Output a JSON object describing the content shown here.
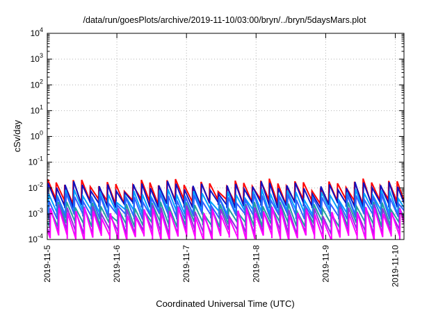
{
  "chart_data": {
    "type": "line",
    "title": "/data/run/goesPlots/archive/2019-11-10/03:00/bryn/../bryn/5daysMars.plot",
    "xlabel": "Coordinated Universal Time (UTC)",
    "ylabel": "cSv/day",
    "x_scale": "time",
    "xlim": [
      "2019-11-05T00:00",
      "2019-11-10T03:00"
    ],
    "x_ticks": [
      "2019-11-5",
      "2019-11-6",
      "2019-11-7",
      "2019-11-8",
      "2019-11-9",
      "2019-11-10"
    ],
    "y_scale": "log",
    "ylim": [
      0.0001,
      10000
    ],
    "y_ticks": [
      {
        "base": "10",
        "exp": "-4"
      },
      {
        "base": "10",
        "exp": "-3"
      },
      {
        "base": "10",
        "exp": "-2"
      },
      {
        "base": "10",
        "exp": "-1"
      },
      {
        "base": "10",
        "exp": "0"
      },
      {
        "base": "10",
        "exp": "1"
      },
      {
        "base": "10",
        "exp": "2"
      },
      {
        "base": "10",
        "exp": "3"
      },
      {
        "base": "10",
        "exp": "4"
      }
    ],
    "grid": true,
    "legend": "none",
    "cycle_period_hours": 2.94,
    "series": [
      {
        "color": "#ff0000",
        "peak": 0.015,
        "trough": 0.003,
        "phase_hours": 0.0
      },
      {
        "color": "#1010c0",
        "peak": 0.012,
        "trough": 0.0022,
        "phase_hours": 0.15
      },
      {
        "color": "#00a0ff",
        "peak": 0.006,
        "trough": 0.0012,
        "phase_hours": 0.35
      },
      {
        "color": "#3060ff",
        "peak": 0.004,
        "trough": 0.0008,
        "phase_hours": 0.5
      },
      {
        "color": "#20a0a0",
        "peak": 0.002,
        "trough": 0.0004,
        "phase_hours": 0.7
      },
      {
        "color": "#9030e0",
        "peak": 0.0015,
        "trough": 0.0002,
        "phase_hours": 0.85
      },
      {
        "color": "#ff00ff",
        "peak": 0.0012,
        "trough": 0.00012,
        "phase_hours": 1.0
      }
    ],
    "colors": {
      "grid": "#b0b0b0",
      "axis": "#000000"
    }
  }
}
